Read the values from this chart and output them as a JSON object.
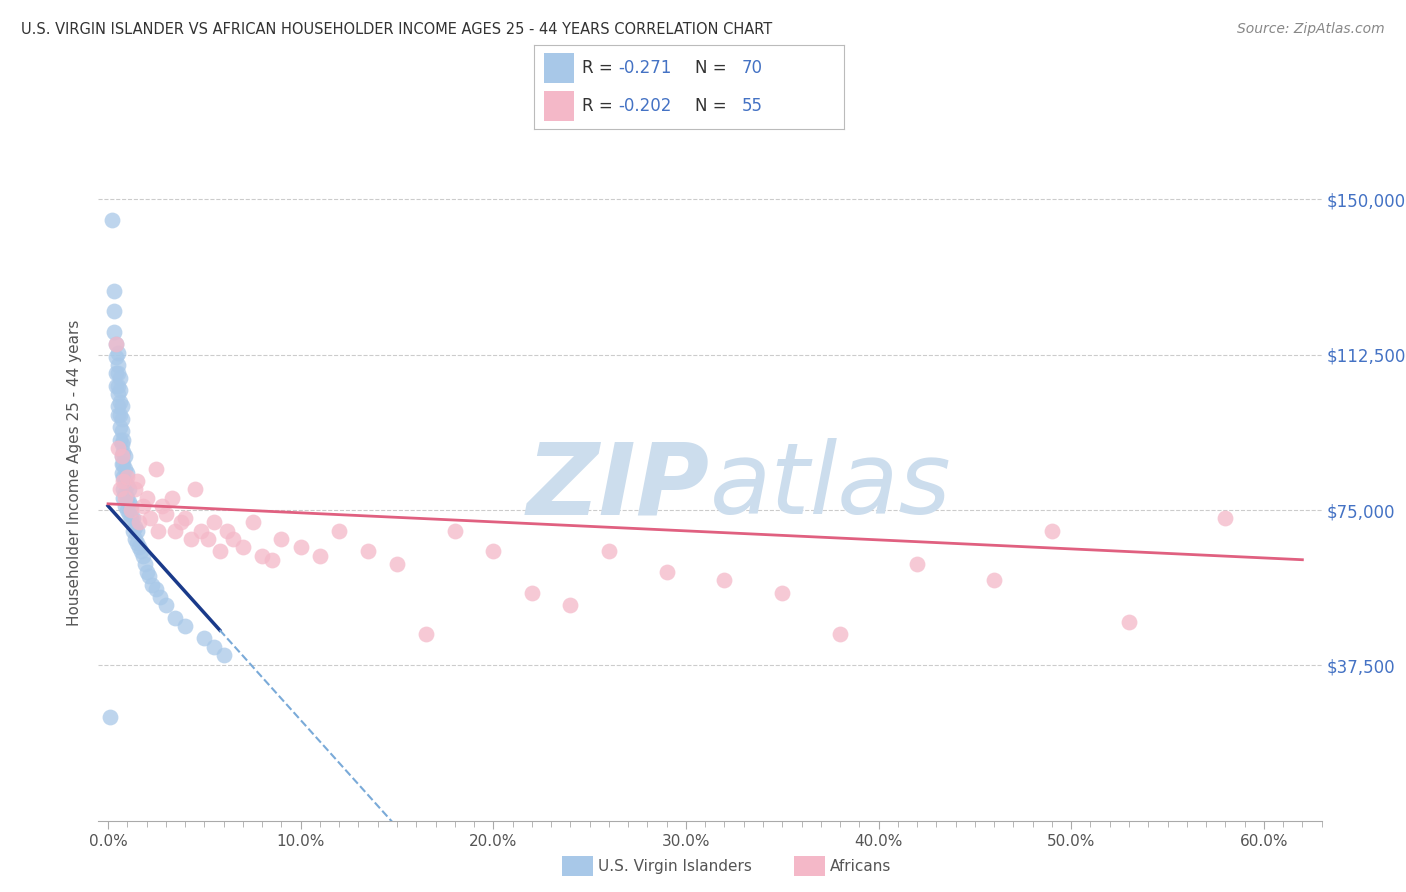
{
  "title": "U.S. VIRGIN ISLANDER VS AFRICAN HOUSEHOLDER INCOME AGES 25 - 44 YEARS CORRELATION CHART",
  "source": "Source: ZipAtlas.com",
  "ylabel": "Householder Income Ages 25 - 44 years",
  "xlabel_ticks": [
    "0.0%",
    "",
    "",
    "",
    "",
    "",
    "",
    "",
    "",
    "",
    "10.0%",
    "",
    "",
    "",
    "",
    "",
    "",
    "",
    "",
    "",
    "20.0%",
    "",
    "",
    "",
    "",
    "",
    "",
    "",
    "",
    "",
    "30.0%",
    "",
    "",
    "",
    "",
    "",
    "",
    "",
    "",
    "",
    "40.0%",
    "",
    "",
    "",
    "",
    "",
    "",
    "",
    "",
    "",
    "50.0%",
    "",
    "",
    "",
    "",
    "",
    "",
    "",
    "",
    "",
    "60.0%"
  ],
  "xlabel_vals_major": [
    0.0,
    0.1,
    0.2,
    0.3,
    0.4,
    0.5,
    0.6
  ],
  "xlabel_labels_major": [
    "0.0%",
    "10.0%",
    "20.0%",
    "30.0%",
    "40.0%",
    "50.0%",
    "60.0%"
  ],
  "ylabel_ticks": [
    "$37,500",
    "$75,000",
    "$112,500",
    "$150,000"
  ],
  "ylabel_vals": [
    37500,
    75000,
    112500,
    150000
  ],
  "ylim": [
    0,
    168000
  ],
  "xlim": [
    -0.005,
    0.63
  ],
  "legend_r_blue": "-0.271",
  "legend_n_blue": "70",
  "legend_r_pink": "-0.202",
  "legend_n_pink": "55",
  "blue_color": "#a8c8e8",
  "pink_color": "#f4b8c8",
  "line_blue": "#1a3a8a",
  "line_blue_dash": "#7aaad8",
  "line_pink": "#e06080",
  "watermark_color": "#ccdded",
  "blue_scatter_x": [
    0.001,
    0.002,
    0.003,
    0.003,
    0.003,
    0.004,
    0.004,
    0.004,
    0.004,
    0.005,
    0.005,
    0.005,
    0.005,
    0.005,
    0.005,
    0.005,
    0.006,
    0.006,
    0.006,
    0.006,
    0.006,
    0.006,
    0.007,
    0.007,
    0.007,
    0.007,
    0.007,
    0.007,
    0.007,
    0.008,
    0.008,
    0.008,
    0.008,
    0.008,
    0.008,
    0.009,
    0.009,
    0.009,
    0.009,
    0.009,
    0.01,
    0.01,
    0.01,
    0.01,
    0.011,
    0.011,
    0.011,
    0.012,
    0.012,
    0.013,
    0.013,
    0.014,
    0.014,
    0.015,
    0.015,
    0.016,
    0.017,
    0.018,
    0.019,
    0.02,
    0.021,
    0.023,
    0.025,
    0.027,
    0.03,
    0.035,
    0.04,
    0.05,
    0.055,
    0.06
  ],
  "blue_scatter_y": [
    25000,
    145000,
    128000,
    123000,
    118000,
    115000,
    112000,
    108000,
    105000,
    113000,
    110000,
    108000,
    105000,
    103000,
    100000,
    98000,
    107000,
    104000,
    101000,
    98000,
    95000,
    92000,
    100000,
    97000,
    94000,
    91000,
    88000,
    86000,
    84000,
    92000,
    89000,
    86000,
    83000,
    80000,
    78000,
    88000,
    85000,
    82000,
    79000,
    76000,
    84000,
    81000,
    78000,
    75000,
    80000,
    77000,
    74000,
    76000,
    73000,
    73000,
    70000,
    71000,
    68000,
    70000,
    67000,
    66000,
    65000,
    64000,
    62000,
    60000,
    59000,
    57000,
    56000,
    54000,
    52000,
    49000,
    47000,
    44000,
    42000,
    40000
  ],
  "pink_scatter_x": [
    0.004,
    0.005,
    0.006,
    0.007,
    0.008,
    0.009,
    0.01,
    0.012,
    0.014,
    0.015,
    0.016,
    0.018,
    0.02,
    0.022,
    0.025,
    0.026,
    0.028,
    0.03,
    0.033,
    0.035,
    0.038,
    0.04,
    0.043,
    0.045,
    0.048,
    0.052,
    0.055,
    0.058,
    0.062,
    0.065,
    0.07,
    0.075,
    0.08,
    0.085,
    0.09,
    0.1,
    0.11,
    0.12,
    0.135,
    0.15,
    0.165,
    0.18,
    0.2,
    0.22,
    0.24,
    0.26,
    0.29,
    0.32,
    0.35,
    0.38,
    0.42,
    0.46,
    0.49,
    0.53,
    0.58
  ],
  "pink_scatter_y": [
    115000,
    90000,
    80000,
    88000,
    82000,
    78000,
    83000,
    75000,
    80000,
    82000,
    72000,
    76000,
    78000,
    73000,
    85000,
    70000,
    76000,
    74000,
    78000,
    70000,
    72000,
    73000,
    68000,
    80000,
    70000,
    68000,
    72000,
    65000,
    70000,
    68000,
    66000,
    72000,
    64000,
    63000,
    68000,
    66000,
    64000,
    70000,
    65000,
    62000,
    45000,
    70000,
    65000,
    55000,
    52000,
    65000,
    60000,
    58000,
    55000,
    45000,
    62000,
    58000,
    70000,
    48000,
    73000
  ]
}
